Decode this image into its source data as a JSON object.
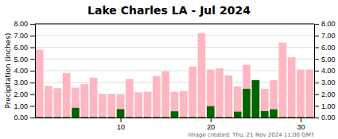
{
  "chart_data": {
    "type": "bar",
    "title": "Lake Charles LA - Jul 2024",
    "y_label": "Precipitation (inches)",
    "annotations": [
      "Image created: Thu, 21 Nov 2024 11:00 GMT"
    ],
    "x": [
      1,
      2,
      3,
      4,
      5,
      6,
      7,
      8,
      9,
      10,
      11,
      12,
      13,
      14,
      15,
      16,
      17,
      18,
      19,
      20,
      21,
      22,
      23,
      24,
      25,
      26,
      27,
      28,
      29,
      30,
      31
    ],
    "series": [
      {
        "color": "#FFB6C1",
        "values": [
          5.8,
          2.7,
          2.5,
          3.8,
          2.55,
          2.85,
          3.4,
          2.0,
          2.0,
          1.95,
          3.3,
          2.15,
          2.2,
          3.55,
          3.95,
          2.2,
          2.25,
          4.35,
          7.2,
          4.1,
          4.2,
          3.6,
          2.65,
          4.5,
          3.15,
          2.45,
          3.2,
          6.4,
          5.15,
          4.1,
          4.1
        ]
      },
      {
        "color": "#006400",
        "values": [
          0.05,
          0.05,
          0.05,
          0.05,
          0.83,
          0.05,
          0.05,
          0.05,
          0.05,
          0.72,
          0.05,
          0.05,
          0.05,
          0.05,
          0.05,
          0.53,
          0.05,
          0.05,
          0.05,
          0.97,
          0.05,
          0.05,
          0.5,
          2.45,
          3.2,
          0.55,
          0.7,
          0.05,
          0.05,
          0.05,
          0.05
        ]
      }
    ],
    "stacked": false,
    "grid": true,
    "xlim": [
      0.5,
      31.5
    ],
    "xticks": [
      10,
      20,
      30
    ],
    "ylim": [
      0,
      8.0
    ],
    "yticks": [
      {
        "value": 0.0,
        "label": "0.00"
      },
      {
        "value": 1.0,
        "label": "1.00"
      },
      {
        "value": 2.0,
        "label": "2.00"
      },
      {
        "value": 3.0,
        "label": "3.00"
      },
      {
        "value": 4.0,
        "label": "4.00"
      },
      {
        "value": 5.0,
        "label": "5.00"
      },
      {
        "value": 6.0,
        "label": "6.00"
      },
      {
        "value": 7.0,
        "label": "7.00"
      },
      {
        "value": 8.0,
        "label": "8.00"
      }
    ],
    "y2lim": [
      0,
      8.0
    ],
    "y2ticks": [
      {
        "value": 0.0,
        "label": "0.00"
      },
      {
        "value": 1.0,
        "label": "1.00"
      },
      {
        "value": 2.0,
        "label": "2.00"
      },
      {
        "value": 3.0,
        "label": "3.00"
      },
      {
        "value": 4.0,
        "label": "4.00"
      },
      {
        "value": 5.0,
        "label": "5.00"
      },
      {
        "value": 6.0,
        "label": "6.00"
      },
      {
        "value": 7.0,
        "label": "7.00"
      },
      {
        "value": 8.0,
        "label": "8.00"
      }
    ]
  }
}
